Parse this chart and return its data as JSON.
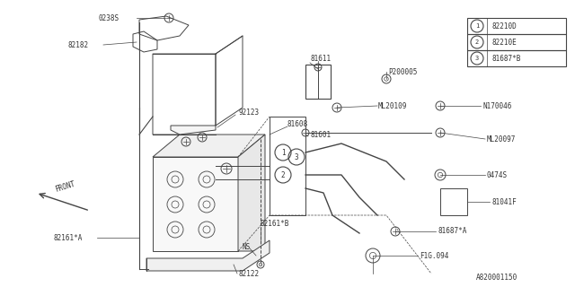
{
  "bg_color": "#ffffff",
  "line_color": "#444444",
  "text_color": "#333333",
  "fig_width": 6.4,
  "fig_height": 3.2,
  "dpi": 100,
  "legend_items": [
    {
      "num": "1",
      "label": "82210D"
    },
    {
      "num": "2",
      "label": "82210E"
    },
    {
      "num": "3",
      "label": "81687*B"
    }
  ]
}
